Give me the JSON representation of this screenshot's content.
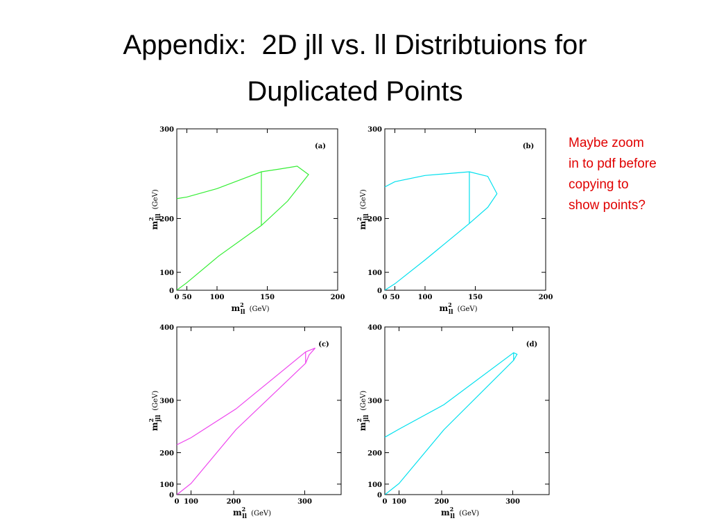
{
  "title": [
    "Appendix:  2D jll vs. ll Distribtuions for",
    "Duplicated Points"
  ],
  "note": [
    "Maybe zoom",
    "in to pdf before",
    "copying to",
    "show points?"
  ],
  "chart_data": [
    {
      "type": "line",
      "panel": "(a)",
      "xscale": "square",
      "yscale": "square",
      "xlabel": {
        "base": "m",
        "sup": "2",
        "sub": "ll",
        "unit": "(GeV)"
      },
      "ylabel": {
        "base": "m",
        "sup": "2",
        "sub": "jll",
        "unit": "(GeV)"
      },
      "xlim": [
        0,
        200
      ],
      "ylim": [
        0,
        300
      ],
      "xticks": [
        0,
        50,
        100,
        150,
        200
      ],
      "yticks": [
        0,
        100,
        200,
        300
      ],
      "series": [
        {
          "color": "#33ee33",
          "x": [
            0,
            50,
            100,
            145,
            160,
            173,
            181,
            166,
            145,
            102,
            50,
            5
          ],
          "values": [
            226,
            228,
            238,
            257,
            260,
            263,
            254,
            223,
            190,
            138,
            65,
            10
          ]
        },
        {
          "color": "#33ee33",
          "x": [
            145,
            145
          ],
          "values": [
            190,
            257
          ]
        }
      ]
    },
    {
      "type": "line",
      "panel": "(b)",
      "xscale": "square",
      "yscale": "square",
      "xlabel": {
        "base": "m",
        "sup": "2",
        "sub": "ll",
        "unit": "(GeV)"
      },
      "ylabel": {
        "base": "m",
        "sup": "2",
        "sub": "jll",
        "unit": "(GeV)"
      },
      "xlim": [
        0,
        200
      ],
      "ylim": [
        0,
        300
      ],
      "xticks": [
        0,
        50,
        100,
        150,
        200
      ],
      "yticks": [
        0,
        100,
        200,
        300
      ],
      "series": [
        {
          "color": "#00e0ee",
          "x": [
            0,
            50,
            100,
            145,
            160,
            167,
            160,
            145,
            100,
            50,
            5
          ],
          "values": [
            240,
            246,
            253,
            257,
            252,
            232,
            215,
            193,
            130,
            60,
            8
          ]
        },
        {
          "color": "#00e0ee",
          "x": [
            145,
            145
          ],
          "values": [
            193,
            257
          ]
        }
      ]
    },
    {
      "type": "line",
      "panel": "(c)",
      "xscale": "square",
      "yscale": "square",
      "xlabel": {
        "base": "m",
        "sup": "2",
        "sub": "ll",
        "unit": "(GeV)"
      },
      "ylabel": {
        "base": "m",
        "sup": "2",
        "sub": "jll",
        "unit": "(GeV)"
      },
      "xlim": [
        0,
        340
      ],
      "ylim": [
        0,
        400
      ],
      "xticks": [
        0,
        100,
        200,
        300
      ],
      "yticks": [
        0,
        100,
        200,
        300,
        400
      ],
      "series": [
        {
          "color": "#ee44ee",
          "x": [
            0,
            100,
            204,
            301,
            312,
            305,
            301,
            204,
            100,
            15
          ],
          "values": [
            218,
            233,
            286,
            369,
            374,
            365,
            354,
            249,
            103,
            10
          ]
        },
        {
          "color": "#ee44ee",
          "x": [
            301,
            301
          ],
          "values": [
            354,
            369
          ]
        }
      ]
    },
    {
      "type": "line",
      "panel": "(d)",
      "xscale": "square",
      "yscale": "square",
      "xlabel": {
        "base": "m",
        "sup": "2",
        "sub": "ll",
        "unit": "(GeV)"
      },
      "ylabel": {
        "base": "m",
        "sup": "2",
        "sub": "jll",
        "unit": "(GeV)"
      },
      "xlim": [
        0,
        340
      ],
      "ylim": [
        0,
        400
      ],
      "xticks": [
        0,
        100,
        200,
        300
      ],
      "yticks": [
        0,
        100,
        200,
        300,
        400
      ],
      "series": [
        {
          "color": "#00e0ee",
          "x": [
            0,
            100,
            204,
            301,
            305,
            301,
            204,
            100,
            15
          ],
          "values": [
            234,
            250,
            293,
            368,
            366,
            358,
            249,
            103,
            10
          ]
        },
        {
          "color": "#00e0ee",
          "x": [
            301,
            301
          ],
          "values": [
            358,
            368
          ]
        }
      ]
    }
  ]
}
